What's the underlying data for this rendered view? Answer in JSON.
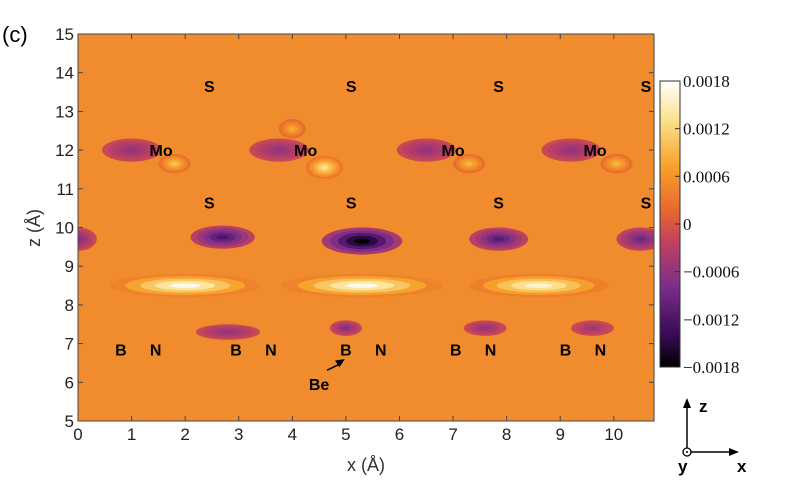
{
  "chart_data": {
    "type": "heatmap",
    "panel_label": "(c)",
    "xlabel": "x (Å)",
    "ylabel": "z (Å)",
    "xlim": [
      0,
      10.75
    ],
    "ylim": [
      5,
      15
    ],
    "x_ticks": [
      0,
      1,
      2,
      3,
      4,
      5,
      6,
      7,
      8,
      9,
      10
    ],
    "y_ticks": [
      5,
      6,
      7,
      8,
      9,
      10,
      11,
      12,
      13,
      14,
      15
    ],
    "colorbar": {
      "range": [
        -0.0018,
        0.0018
      ],
      "ticks": [
        "0.0018",
        "0.0012",
        "0.0006",
        "0",
        "−0.0006",
        "−0.0012",
        "−0.0018"
      ],
      "colormap": [
        "#000000",
        "#3a0c5a",
        "#7a2e8a",
        "#c2425f",
        "#e8692c",
        "#f7a12b",
        "#fbe08a",
        "#ffffff"
      ]
    },
    "atom_labels": [
      {
        "text": "S",
        "x": 2.45,
        "z": 13.65
      },
      {
        "text": "S",
        "x": 5.1,
        "z": 13.65
      },
      {
        "text": "S",
        "x": 7.85,
        "z": 13.65
      },
      {
        "text": "S",
        "x": 10.6,
        "z": 13.65
      },
      {
        "text": "Mo",
        "x": 1.55,
        "z": 12.0
      },
      {
        "text": "Mo",
        "x": 4.25,
        "z": 12.0
      },
      {
        "text": "Mo",
        "x": 7.0,
        "z": 12.0
      },
      {
        "text": "Mo",
        "x": 9.65,
        "z": 12.0
      },
      {
        "text": "S",
        "x": 2.45,
        "z": 10.65
      },
      {
        "text": "S",
        "x": 5.1,
        "z": 10.65
      },
      {
        "text": "S",
        "x": 7.85,
        "z": 10.65
      },
      {
        "text": "S",
        "x": 10.6,
        "z": 10.65
      },
      {
        "text": "B",
        "x": 0.8,
        "z": 6.85
      },
      {
        "text": "N",
        "x": 1.45,
        "z": 6.85
      },
      {
        "text": "B",
        "x": 2.95,
        "z": 6.85
      },
      {
        "text": "N",
        "x": 3.6,
        "z": 6.85
      },
      {
        "text": "B",
        "x": 5.0,
        "z": 6.85
      },
      {
        "text": "N",
        "x": 5.65,
        "z": 6.85
      },
      {
        "text": "B",
        "x": 7.05,
        "z": 6.85
      },
      {
        "text": "N",
        "x": 7.7,
        "z": 6.85
      },
      {
        "text": "B",
        "x": 9.1,
        "z": 6.85
      },
      {
        "text": "N",
        "x": 9.75,
        "z": 6.85
      }
    ],
    "annotation": {
      "text": "Be",
      "x": 4.5,
      "z": 5.95,
      "arrow_to": {
        "x": 4.98,
        "z": 6.6
      }
    },
    "features": [
      {
        "x": 5.3,
        "z": 9.65,
        "value": -0.0018,
        "rx": 0.75,
        "rz": 0.35
      },
      {
        "x": 2.7,
        "z": 9.75,
        "value": -0.0012,
        "rx": 0.6,
        "rz": 0.3
      },
      {
        "x": 7.85,
        "z": 9.7,
        "value": -0.0011,
        "rx": 0.55,
        "rz": 0.3
      },
      {
        "x": 10.5,
        "z": 9.7,
        "value": -0.0009,
        "rx": 0.45,
        "rz": 0.3
      },
      {
        "x": 0.0,
        "z": 9.7,
        "value": -0.0007,
        "rx": 0.35,
        "rz": 0.3
      },
      {
        "x": 1.0,
        "z": 12.0,
        "value": -0.0006,
        "rx": 0.55,
        "rz": 0.3
      },
      {
        "x": 3.75,
        "z": 12.0,
        "value": -0.0006,
        "rx": 0.55,
        "rz": 0.3
      },
      {
        "x": 6.5,
        "z": 12.0,
        "value": -0.0006,
        "rx": 0.55,
        "rz": 0.3
      },
      {
        "x": 9.2,
        "z": 12.0,
        "value": -0.0006,
        "rx": 0.55,
        "rz": 0.3
      },
      {
        "x": 4.6,
        "z": 11.55,
        "value": 0.0013,
        "rx": 0.35,
        "rz": 0.3
      },
      {
        "x": 1.8,
        "z": 11.65,
        "value": 0.001,
        "rx": 0.3,
        "rz": 0.25
      },
      {
        "x": 7.3,
        "z": 11.65,
        "value": 0.0009,
        "rx": 0.3,
        "rz": 0.25
      },
      {
        "x": 10.05,
        "z": 11.65,
        "value": 0.0009,
        "rx": 0.3,
        "rz": 0.25
      },
      {
        "x": 4.0,
        "z": 12.55,
        "value": 0.0008,
        "rx": 0.25,
        "rz": 0.25
      },
      {
        "x": 2.0,
        "z": 8.5,
        "value": 0.0017,
        "rx": 1.4,
        "rz": 0.3
      },
      {
        "x": 5.3,
        "z": 8.5,
        "value": 0.0017,
        "rx": 1.5,
        "rz": 0.3
      },
      {
        "x": 8.6,
        "z": 8.5,
        "value": 0.0016,
        "rx": 1.3,
        "rz": 0.3
      },
      {
        "x": 2.8,
        "z": 7.3,
        "value": -0.0006,
        "rx": 0.6,
        "rz": 0.2
      },
      {
        "x": 5.0,
        "z": 7.4,
        "value": -0.0007,
        "rx": 0.3,
        "rz": 0.2
      },
      {
        "x": 7.6,
        "z": 7.4,
        "value": -0.0006,
        "rx": 0.4,
        "rz": 0.2
      },
      {
        "x": 9.6,
        "z": 7.4,
        "value": -0.0005,
        "rx": 0.4,
        "rz": 0.2
      }
    ]
  },
  "coord_axes": {
    "z": "z",
    "x": "x",
    "y": "y"
  }
}
